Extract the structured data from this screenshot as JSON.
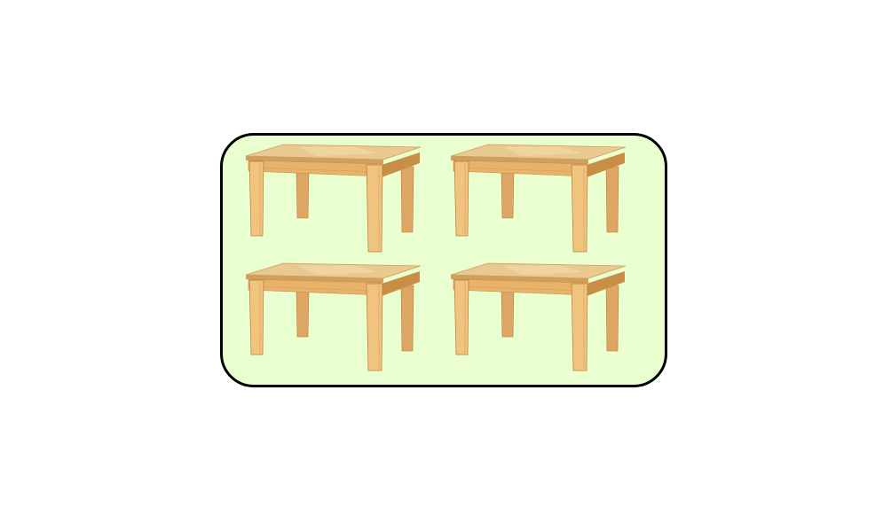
{
  "scene": {
    "background_color": "#ffffff",
    "panel": {
      "fill_color": "#eaffd0",
      "border_color": "#000000"
    },
    "object": {
      "icon": "wooden-table-icon",
      "count": 4,
      "colors": {
        "top": "#e9c98f",
        "top_light": "#f3dcac",
        "top_shadow": "#cf9f5e",
        "apron": "#e7b36b",
        "apron_shadow": "#c98e45",
        "leg_front": "#f0c47f",
        "leg_back": "#dea665",
        "leg_edge": "#b77a34"
      }
    },
    "items": [
      {
        "name": "table-1"
      },
      {
        "name": "table-2"
      },
      {
        "name": "table-3"
      },
      {
        "name": "table-4"
      }
    ]
  }
}
